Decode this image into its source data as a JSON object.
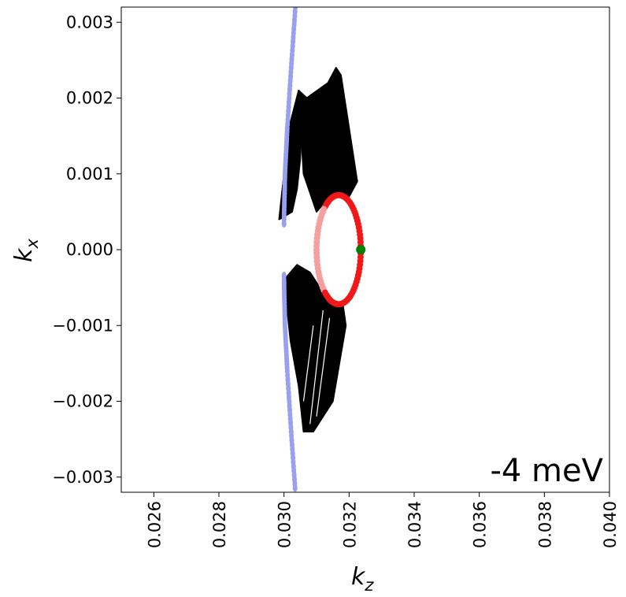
{
  "chart_data": {
    "type": "scatter",
    "title": "",
    "annotation": "-4 meV",
    "xlabel": {
      "base": "k",
      "sub": "z"
    },
    "ylabel": {
      "base": "k",
      "sub": "x"
    },
    "xlim": [
      0.025,
      0.04
    ],
    "ylim": [
      -0.0032,
      0.0032
    ],
    "xticks": [
      0.026,
      0.028,
      0.03,
      0.032,
      0.034,
      0.036,
      0.038,
      0.04
    ],
    "xtick_labels": [
      "0.026",
      "0.028",
      "0.030",
      "0.032",
      "0.034",
      "0.036",
      "0.038",
      "0.040"
    ],
    "yticks": [
      -0.003,
      -0.002,
      -0.001,
      0.0,
      0.001,
      0.002,
      0.003
    ],
    "ytick_labels": [
      "−0.003",
      "−0.002",
      "−0.001",
      "0.000",
      "0.001",
      "0.002",
      "0.003"
    ],
    "grid": false,
    "colors": {
      "blue_curve": "#9aa0f0",
      "red_ring_dark": "#f01818",
      "red_ring_light": "#f5a0a0",
      "arrow_fill": "#000000",
      "green_marker": "#008000"
    },
    "series": [
      {
        "kind": "blue-curve",
        "points": [
          [
            0.03035,
            0.0032
          ],
          [
            0.03022,
            0.0024
          ],
          [
            0.0301,
            0.0016
          ],
          [
            0.03003,
            0.001
          ],
          [
            0.03,
            0.0004
          ],
          [
            0.03,
            -0.0004
          ],
          [
            0.03003,
            -0.001
          ],
          [
            0.0301,
            -0.0016
          ],
          [
            0.03022,
            -0.0024
          ],
          [
            0.03035,
            -0.0032
          ]
        ]
      },
      {
        "kind": "red-ring",
        "center": [
          0.03168,
          0.0
        ],
        "semi_axes": [
          0.00068,
          0.00072
        ]
      },
      {
        "kind": "arrow-fill",
        "outlines": [
          [
            [
              0.02985,
              0.0004
            ],
            [
              0.03015,
              0.0016
            ],
            [
              0.03045,
              0.0021
            ],
            [
              0.03055,
              0.0018
            ],
            [
              0.0305,
              0.0012
            ],
            [
              0.0304,
              0.0008
            ],
            [
              0.03025,
              0.0005
            ]
          ],
          [
            [
              0.03045,
              0.0021
            ],
            [
              0.0307,
              0.002
            ],
            [
              0.03135,
              0.0022
            ],
            [
              0.0316,
              0.0024
            ],
            [
              0.03175,
              0.0023
            ],
            [
              0.03225,
              0.0009
            ],
            [
              0.032,
              0.0007
            ],
            [
              0.0314,
              0.0007
            ],
            [
              0.031,
              0.0005
            ],
            [
              0.0306,
              0.001
            ]
          ],
          [
            [
              0.03,
              -0.0004
            ],
            [
              0.0302,
              -0.0012
            ],
            [
              0.03045,
              -0.0018
            ],
            [
              0.0306,
              -0.0024
            ],
            [
              0.0309,
              -0.0024
            ],
            [
              0.0315,
              -0.002
            ],
            [
              0.0319,
              -0.001
            ],
            [
              0.0318,
              -0.0007
            ],
            [
              0.0314,
              -0.0007
            ],
            [
              0.0308,
              -0.0003
            ],
            [
              0.0304,
              -0.0002
            ]
          ]
        ]
      },
      {
        "kind": "green-marker",
        "point": [
          0.03236,
          0.0
        ]
      }
    ]
  }
}
